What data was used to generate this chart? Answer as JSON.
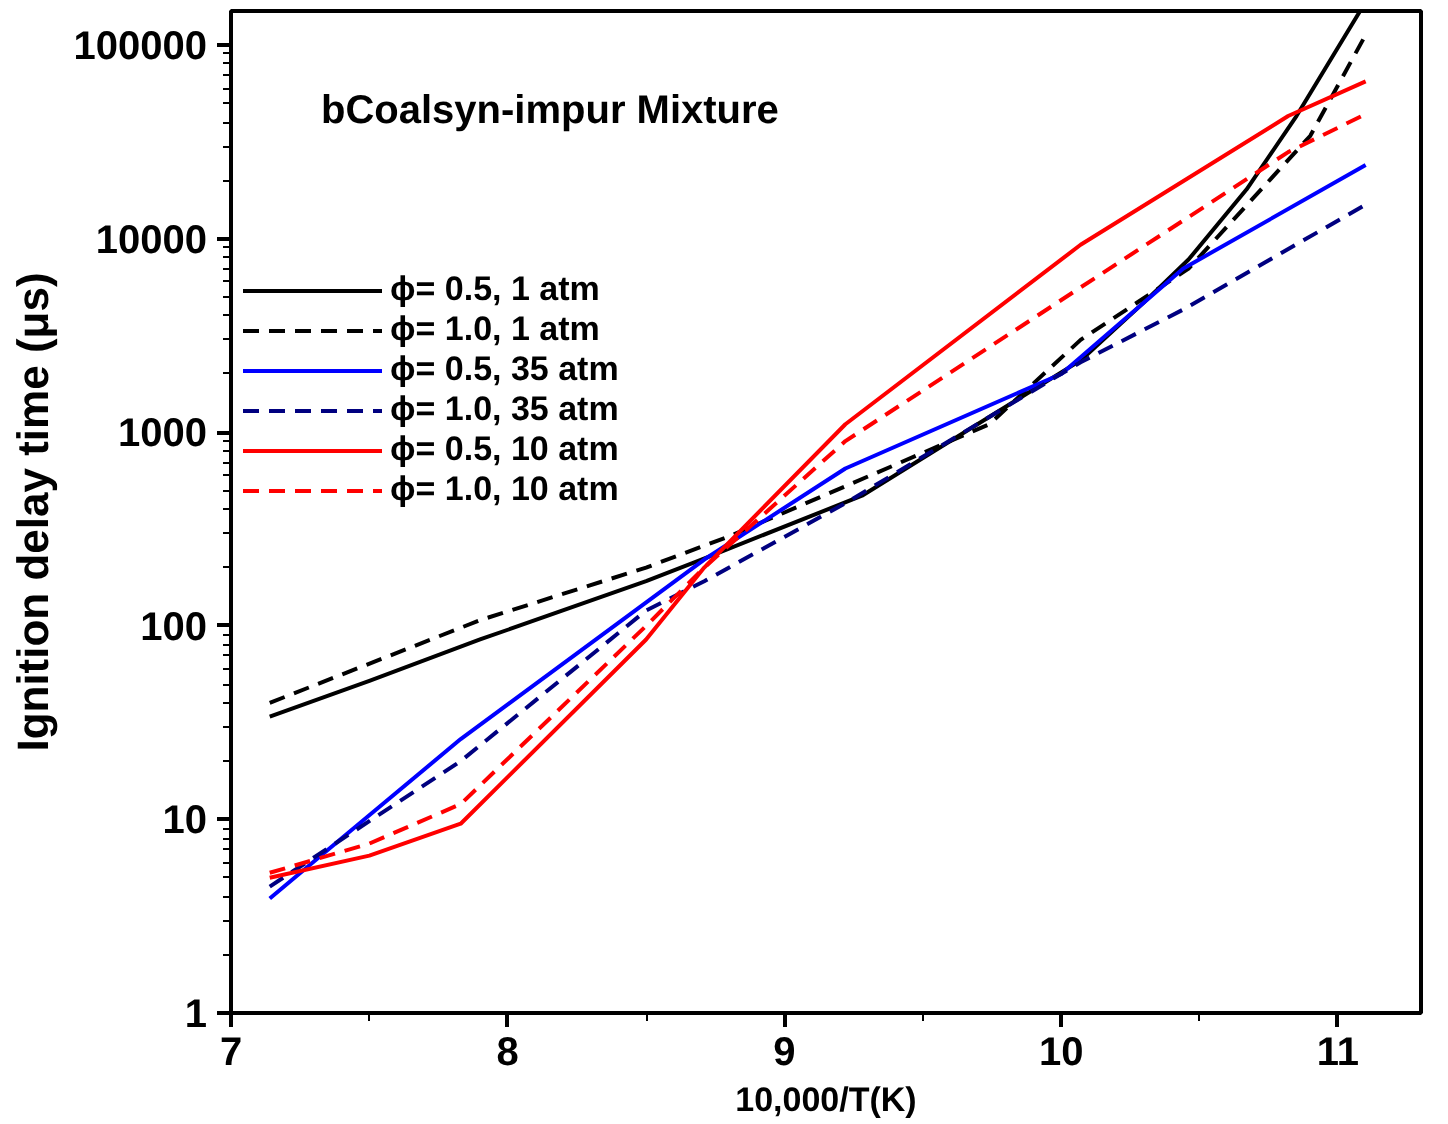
{
  "chart_data": {
    "type": "line",
    "title": "bCoalsyn-impur Mixture",
    "xlabel": "10,000/T(K)",
    "ylabel": "Ignition delay time (μs)",
    "log": "y",
    "grid": false,
    "legend": "top left",
    "marker": "none",
    "xlim": [
      7,
      11.3
    ],
    "xticks": [
      7,
      8,
      9,
      10,
      11
    ],
    "ylim": [
      1,
      150000
    ],
    "yticks": [
      1,
      10,
      100,
      1000,
      10000,
      100000
    ],
    "series": [
      {
        "name": "ϕ= 0.5, 1 atm",
        "color": "#000000",
        "line_style": "solid",
        "x": [
          7.14,
          7.5,
          7.9,
          8.5,
          8.7,
          9.28,
          10.07,
          10.3,
          10.46,
          10.67,
          10.85,
          11.08
        ],
        "values": [
          34,
          52,
          85,
          170,
          220,
          470,
          2350,
          4700,
          7800,
          18000,
          43000,
          150000
        ]
      },
      {
        "name": "ϕ= 1.0, 1 atm",
        "color": "#000000",
        "line_style": "dashed",
        "x": [
          7.14,
          7.9,
          8.5,
          8.8,
          9.74,
          10.07,
          10.46,
          10.9,
          11.1
        ],
        "values": [
          40,
          107,
          200,
          290,
          1100,
          3000,
          7000,
          34000,
          113000
        ]
      },
      {
        "name": "ϕ= 0.5, 35 atm",
        "color": "#0000ff",
        "line_style": "solid",
        "x": [
          7.14,
          7.4,
          7.83,
          8.71,
          9.22,
          10.0,
          10.44,
          11.1
        ],
        "values": [
          3.9,
          8,
          26,
          220,
          650,
          2000,
          7000,
          24000
        ]
      },
      {
        "name": "ϕ= 1.0, 35 atm",
        "color": "#000080",
        "line_style": "dashed",
        "x": [
          7.14,
          7.83,
          8.5,
          8.71,
          9.22,
          10.07,
          10.44,
          11.1
        ],
        "values": [
          4.5,
          20,
          120,
          170,
          430,
          2300,
          4300,
          15000
        ]
      },
      {
        "name": "ϕ= 0.5, 10 atm",
        "color": "#ff0000",
        "line_style": "solid",
        "x": [
          7.14,
          7.5,
          7.83,
          8.5,
          8.71,
          9.22,
          10.07,
          10.82,
          11.1
        ],
        "values": [
          5,
          6.5,
          9.5,
          85,
          200,
          1100,
          9300,
          43000,
          65000
        ]
      },
      {
        "name": "ϕ= 1.0, 10 atm",
        "color": "#ff0000",
        "line_style": "dashed",
        "x": [
          7.14,
          7.5,
          7.83,
          8.5,
          8.71,
          9.22,
          10.07,
          10.82,
          11.1
        ],
        "values": [
          5.3,
          7.5,
          12,
          100,
          200,
          900,
          5600,
          28000,
          44000
        ]
      }
    ]
  }
}
